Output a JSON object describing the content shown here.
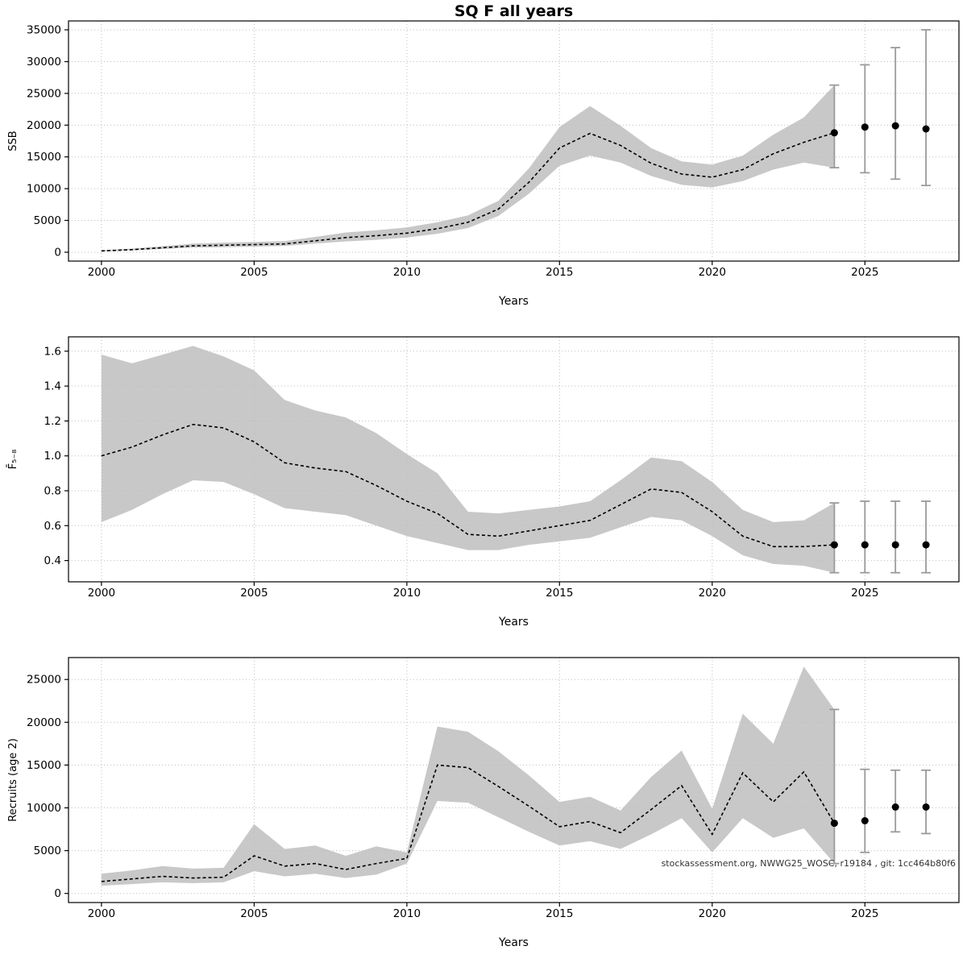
{
  "style": {
    "band_color": "#c8c8c8",
    "line_color": "#000000",
    "error_color": "#9a9a9a",
    "grid_color": "#bdbdbd",
    "annotation_color": "#333333"
  },
  "chart_data": [
    {
      "type": "line",
      "title": "SQ F all years",
      "xlabel": "Years",
      "ylabel": "SSB",
      "x": [
        2000,
        2001,
        2002,
        2003,
        2004,
        2005,
        2006,
        2007,
        2008,
        2009,
        2010,
        2011,
        2012,
        2013,
        2014,
        2015,
        2016,
        2017,
        2018,
        2019,
        2020,
        2021,
        2022,
        2023,
        2024
      ],
      "series": [
        {
          "name": "estimate",
          "values": [
            200,
            400,
            700,
            1000,
            1100,
            1200,
            1300,
            1800,
            2300,
            2600,
            3000,
            3700,
            4700,
            6800,
            11000,
            16400,
            18700,
            16800,
            14000,
            12300,
            11800,
            13000,
            15500,
            17300,
            18800
          ]
        },
        {
          "name": "ci_lower",
          "values": [
            120,
            280,
            500,
            720,
            800,
            880,
            980,
            1350,
            1700,
            1950,
            2300,
            2900,
            3800,
            5700,
            9200,
            13600,
            15200,
            14100,
            12000,
            10600,
            10200,
            11200,
            13000,
            14100,
            13300
          ]
        },
        {
          "name": "ci_upper",
          "values": [
            320,
            560,
            950,
            1350,
            1500,
            1600,
            1750,
            2400,
            3100,
            3450,
            3900,
            4700,
            5800,
            8100,
            13200,
            19700,
            23000,
            19900,
            16400,
            14300,
            13800,
            15200,
            18500,
            21200,
            26300
          ]
        }
      ],
      "forecast": {
        "x": [
          2024,
          2025,
          2026,
          2027
        ],
        "y": [
          18800,
          19700,
          19900,
          19400
        ],
        "lower": [
          13300,
          12500,
          11500,
          10500
        ],
        "upper": [
          26300,
          29500,
          32200,
          35000
        ]
      },
      "xlim": [
        1998.92,
        2028.08
      ],
      "ylim": [
        -1400,
        36400
      ],
      "xticks": [
        2000,
        2005,
        2010,
        2015,
        2020,
        2025
      ],
      "xtick_labels": [
        "2000",
        "2005",
        "2010",
        "2015",
        "2020",
        "2025"
      ],
      "yticks": [
        0,
        5000,
        10000,
        15000,
        20000,
        25000,
        30000,
        35000
      ],
      "ytick_labels": [
        "0",
        "5000",
        "10000",
        "15000",
        "20000",
        "25000",
        "30000",
        "35000"
      ],
      "grid": true,
      "legend": null
    },
    {
      "type": "line",
      "title": "",
      "xlabel": "Years",
      "ylabel": "F̄₅₋₈",
      "x": [
        2000,
        2001,
        2002,
        2003,
        2004,
        2005,
        2006,
        2007,
        2008,
        2009,
        2010,
        2011,
        2012,
        2013,
        2014,
        2015,
        2016,
        2017,
        2018,
        2019,
        2020,
        2021,
        2022,
        2023,
        2024
      ],
      "series": [
        {
          "name": "estimate",
          "values": [
            1.0,
            1.05,
            1.12,
            1.18,
            1.16,
            1.08,
            0.96,
            0.93,
            0.91,
            0.83,
            0.74,
            0.67,
            0.55,
            0.54,
            0.57,
            0.6,
            0.63,
            0.72,
            0.81,
            0.79,
            0.68,
            0.54,
            0.48,
            0.48,
            0.49
          ]
        },
        {
          "name": "ci_lower",
          "values": [
            0.62,
            0.69,
            0.78,
            0.86,
            0.85,
            0.78,
            0.7,
            0.68,
            0.66,
            0.6,
            0.54,
            0.5,
            0.46,
            0.46,
            0.49,
            0.51,
            0.53,
            0.59,
            0.65,
            0.63,
            0.54,
            0.43,
            0.38,
            0.37,
            0.33
          ]
        },
        {
          "name": "ci_upper",
          "values": [
            1.58,
            1.53,
            1.58,
            1.63,
            1.57,
            1.49,
            1.32,
            1.26,
            1.22,
            1.13,
            1.01,
            0.9,
            0.68,
            0.67,
            0.69,
            0.71,
            0.74,
            0.86,
            0.99,
            0.97,
            0.85,
            0.69,
            0.62,
            0.63,
            0.73
          ]
        }
      ],
      "forecast": {
        "x": [
          2024,
          2025,
          2026,
          2027
        ],
        "y": [
          0.49,
          0.49,
          0.49,
          0.49
        ],
        "lower": [
          0.33,
          0.33,
          0.33,
          0.33
        ],
        "upper": [
          0.73,
          0.74,
          0.74,
          0.74
        ]
      },
      "xlim": [
        1998.92,
        2028.08
      ],
      "ylim": [
        0.278,
        1.682
      ],
      "xticks": [
        2000,
        2005,
        2010,
        2015,
        2020,
        2025
      ],
      "xtick_labels": [
        "2000",
        "2005",
        "2010",
        "2015",
        "2020",
        "2025"
      ],
      "yticks": [
        0.4,
        0.6,
        0.8,
        1.0,
        1.2,
        1.4,
        1.6
      ],
      "ytick_labels": [
        "0.4",
        "0.6",
        "0.8",
        "1.0",
        "1.2",
        "1.4",
        "1.6"
      ],
      "grid": true,
      "legend": null
    },
    {
      "type": "line",
      "title": "",
      "xlabel": "Years",
      "ylabel": "Recruits (age 2)",
      "x": [
        2000,
        2001,
        2002,
        2003,
        2004,
        2005,
        2006,
        2007,
        2008,
        2009,
        2010,
        2011,
        2012,
        2013,
        2014,
        2015,
        2016,
        2017,
        2018,
        2019,
        2020,
        2021,
        2022,
        2023,
        2024
      ],
      "series": [
        {
          "name": "estimate",
          "values": [
            1400,
            1700,
            2000,
            1800,
            1900,
            4400,
            3200,
            3500,
            2800,
            3500,
            4100,
            15000,
            14700,
            12500,
            10200,
            7800,
            8400,
            7100,
            9800,
            12600,
            6900,
            14100,
            10700,
            14200,
            8200
          ]
        },
        {
          "name": "ci_lower",
          "values": [
            900,
            1100,
            1300,
            1200,
            1300,
            2600,
            2000,
            2300,
            1800,
            2200,
            3500,
            10800,
            10600,
            8900,
            7200,
            5600,
            6100,
            5200,
            6900,
            8800,
            4800,
            8800,
            6500,
            7600,
            3500
          ]
        },
        {
          "name": "ci_upper",
          "values": [
            2300,
            2700,
            3200,
            2900,
            3000,
            8100,
            5200,
            5600,
            4400,
            5500,
            4800,
            19500,
            18900,
            16600,
            13800,
            10700,
            11300,
            9700,
            13600,
            16700,
            9900,
            21000,
            17500,
            26500,
            21500
          ]
        }
      ],
      "forecast": {
        "x": [
          2024,
          2025,
          2026,
          2027
        ],
        "y": [
          8200,
          8500,
          10100,
          10100
        ],
        "lower": [
          3500,
          4800,
          7200,
          7000
        ],
        "upper": [
          21500,
          14500,
          14400,
          14400
        ]
      },
      "xlim": [
        1998.92,
        2028.08
      ],
      "ylim": [
        -1060,
        27560
      ],
      "xticks": [
        2000,
        2005,
        2010,
        2015,
        2020,
        2025
      ],
      "xtick_labels": [
        "2000",
        "2005",
        "2010",
        "2015",
        "2020",
        "2025"
      ],
      "yticks": [
        0,
        5000,
        10000,
        15000,
        20000,
        25000
      ],
      "ytick_labels": [
        "0",
        "5000",
        "10000",
        "15000",
        "20000",
        "25000"
      ],
      "grid": true,
      "legend": null,
      "annotation": {
        "text": "stockassessment.org, NWWG25_WOSC, r19184 , git: 1cc464b80f6",
        "corner": "bottom-right"
      }
    }
  ]
}
